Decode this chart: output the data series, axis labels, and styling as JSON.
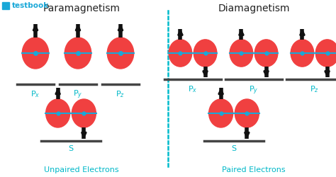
{
  "title_left": "Paramagnetism",
  "title_right": "Diamagnetism",
  "label_bottom_left": "Unpaired Electrons",
  "label_bottom_right": "Paired Electrons",
  "orbital_color": "#F04040",
  "arrow_color": "#111111",
  "line_color": "#444444",
  "dot_color": "#1AA8D8",
  "label_color": "#00B8C8",
  "title_color": "#222222",
  "dashed_color": "#00BBCC",
  "background_color": "#FFFFFF",
  "brand_color": "#00BBCC",
  "brand_text": "testbook"
}
